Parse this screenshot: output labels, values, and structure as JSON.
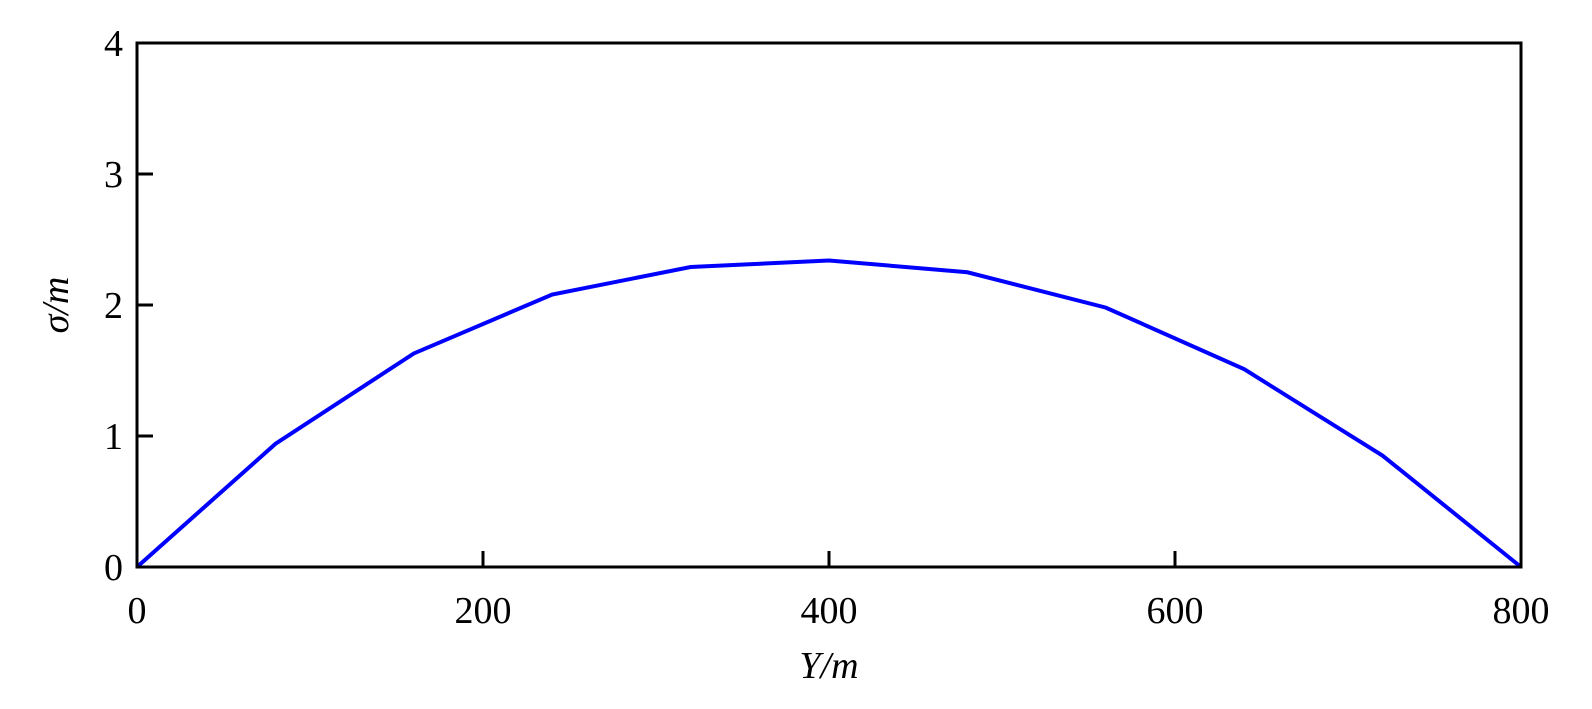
{
  "chart_data": {
    "type": "line",
    "x_label": "Y/m",
    "y_label": "σ/m",
    "x": [
      0,
      80,
      160,
      240,
      320,
      400,
      480,
      560,
      640,
      720,
      800
    ],
    "series": [
      {
        "color": "#0000ff",
        "values": [
          0,
          0.94,
          1.63,
          2.08,
          2.29,
          2.34,
          2.25,
          1.98,
          1.51,
          0.85,
          0
        ]
      }
    ],
    "xlim": [
      0,
      800
    ],
    "xticks": [
      0,
      200,
      400,
      600,
      800
    ],
    "ylim": [
      0,
      4
    ],
    "yticks": [
      0,
      1,
      2,
      3,
      4
    ]
  }
}
